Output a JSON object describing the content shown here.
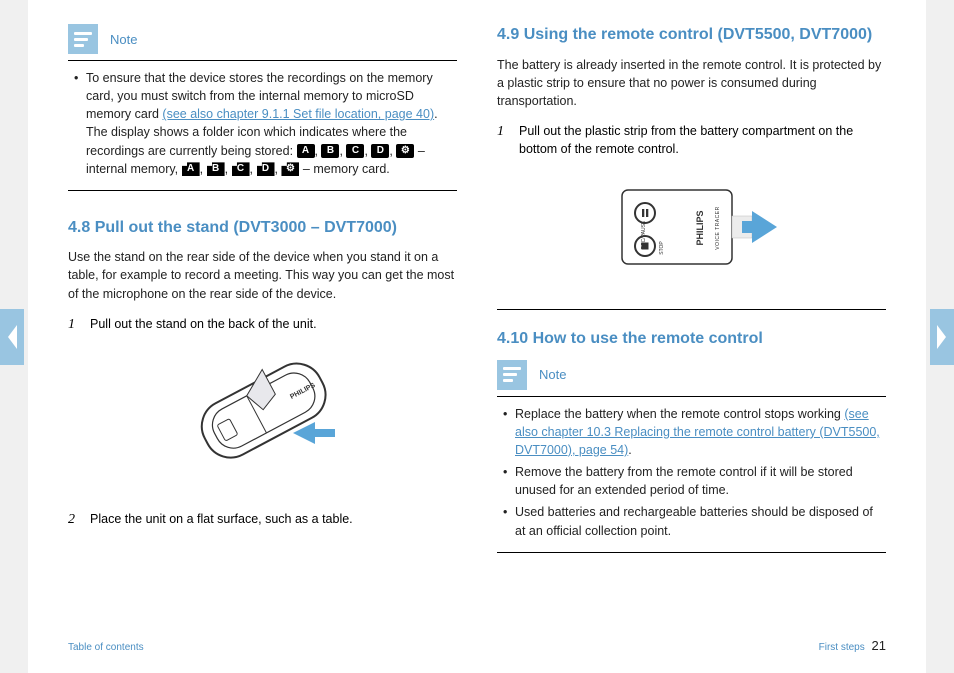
{
  "colors": {
    "accent": "#4a8ec2",
    "accent_light": "#99c5e1",
    "text": "#222222",
    "bg": "#ffffff"
  },
  "nav": {
    "prev_label": "Previous page",
    "next_label": "Next page"
  },
  "left": {
    "note": {
      "label": "Note",
      "item_pre": "To ensure that the device stores the recordings on the memory card, you must switch from the internal memory to microSD memory card ",
      "link": "(see also chapter 9.1.1 Set file location, page 40)",
      "item_mid": ". The display shows a folder icon which indicates where the recordings are currently being stored: ",
      "internal_badges": [
        "A",
        "B",
        "C",
        "D",
        "⚙"
      ],
      "internal_suffix": " – internal memory, ",
      "sd_badges": [
        "A",
        "B",
        "C",
        "D",
        "⚙"
      ],
      "sd_suffix": " – memory card."
    },
    "s48": {
      "title": "4.8  Pull out the stand (DVT3000 – DVT7000)",
      "para": "Use the stand on the rear side of the device when you stand it on a table, for example to record a meeting. This way you can get the most of the microphone on the rear side of the device.",
      "step1_num": "1",
      "step1": "Pull out the stand on the back of the unit.",
      "step2_num": "2",
      "step2": "Place the unit on a flat surface, such as a table."
    }
  },
  "right": {
    "s49": {
      "title": "4.9  Using the remote control (DVT5500, DVT7000)",
      "para": "The battery is already inserted in the remote control. It is protected by a plastic strip to ensure that no power is consumed during transportation.",
      "step1_num": "1",
      "step1": "Pull out the plastic strip from the battery compartment on the bottom of the remote control.",
      "remote_labels": {
        "rec": "REC/PAUSE",
        "stop": "STOP",
        "brand": "PHILIPS",
        "sub": "VOICE TRACER"
      }
    },
    "s410": {
      "title": "4.10 How to use the remote control",
      "note_label": "Note",
      "bullet1_pre": "Replace the battery when the remote control stops working ",
      "bullet1_link": "(see also chapter 10.3 Replacing the remote control battery (DVT5500, DVT7000), page 54)",
      "bullet1_post": ".",
      "bullet2": "Remove the battery from the remote control if it will be stored unused for an extended period of time.",
      "bullet3": "Used batteries and rechargeable batteries should be disposed of at an official collection point."
    }
  },
  "footer": {
    "toc": "Table of contents",
    "chapter": "First steps",
    "page": "21"
  }
}
